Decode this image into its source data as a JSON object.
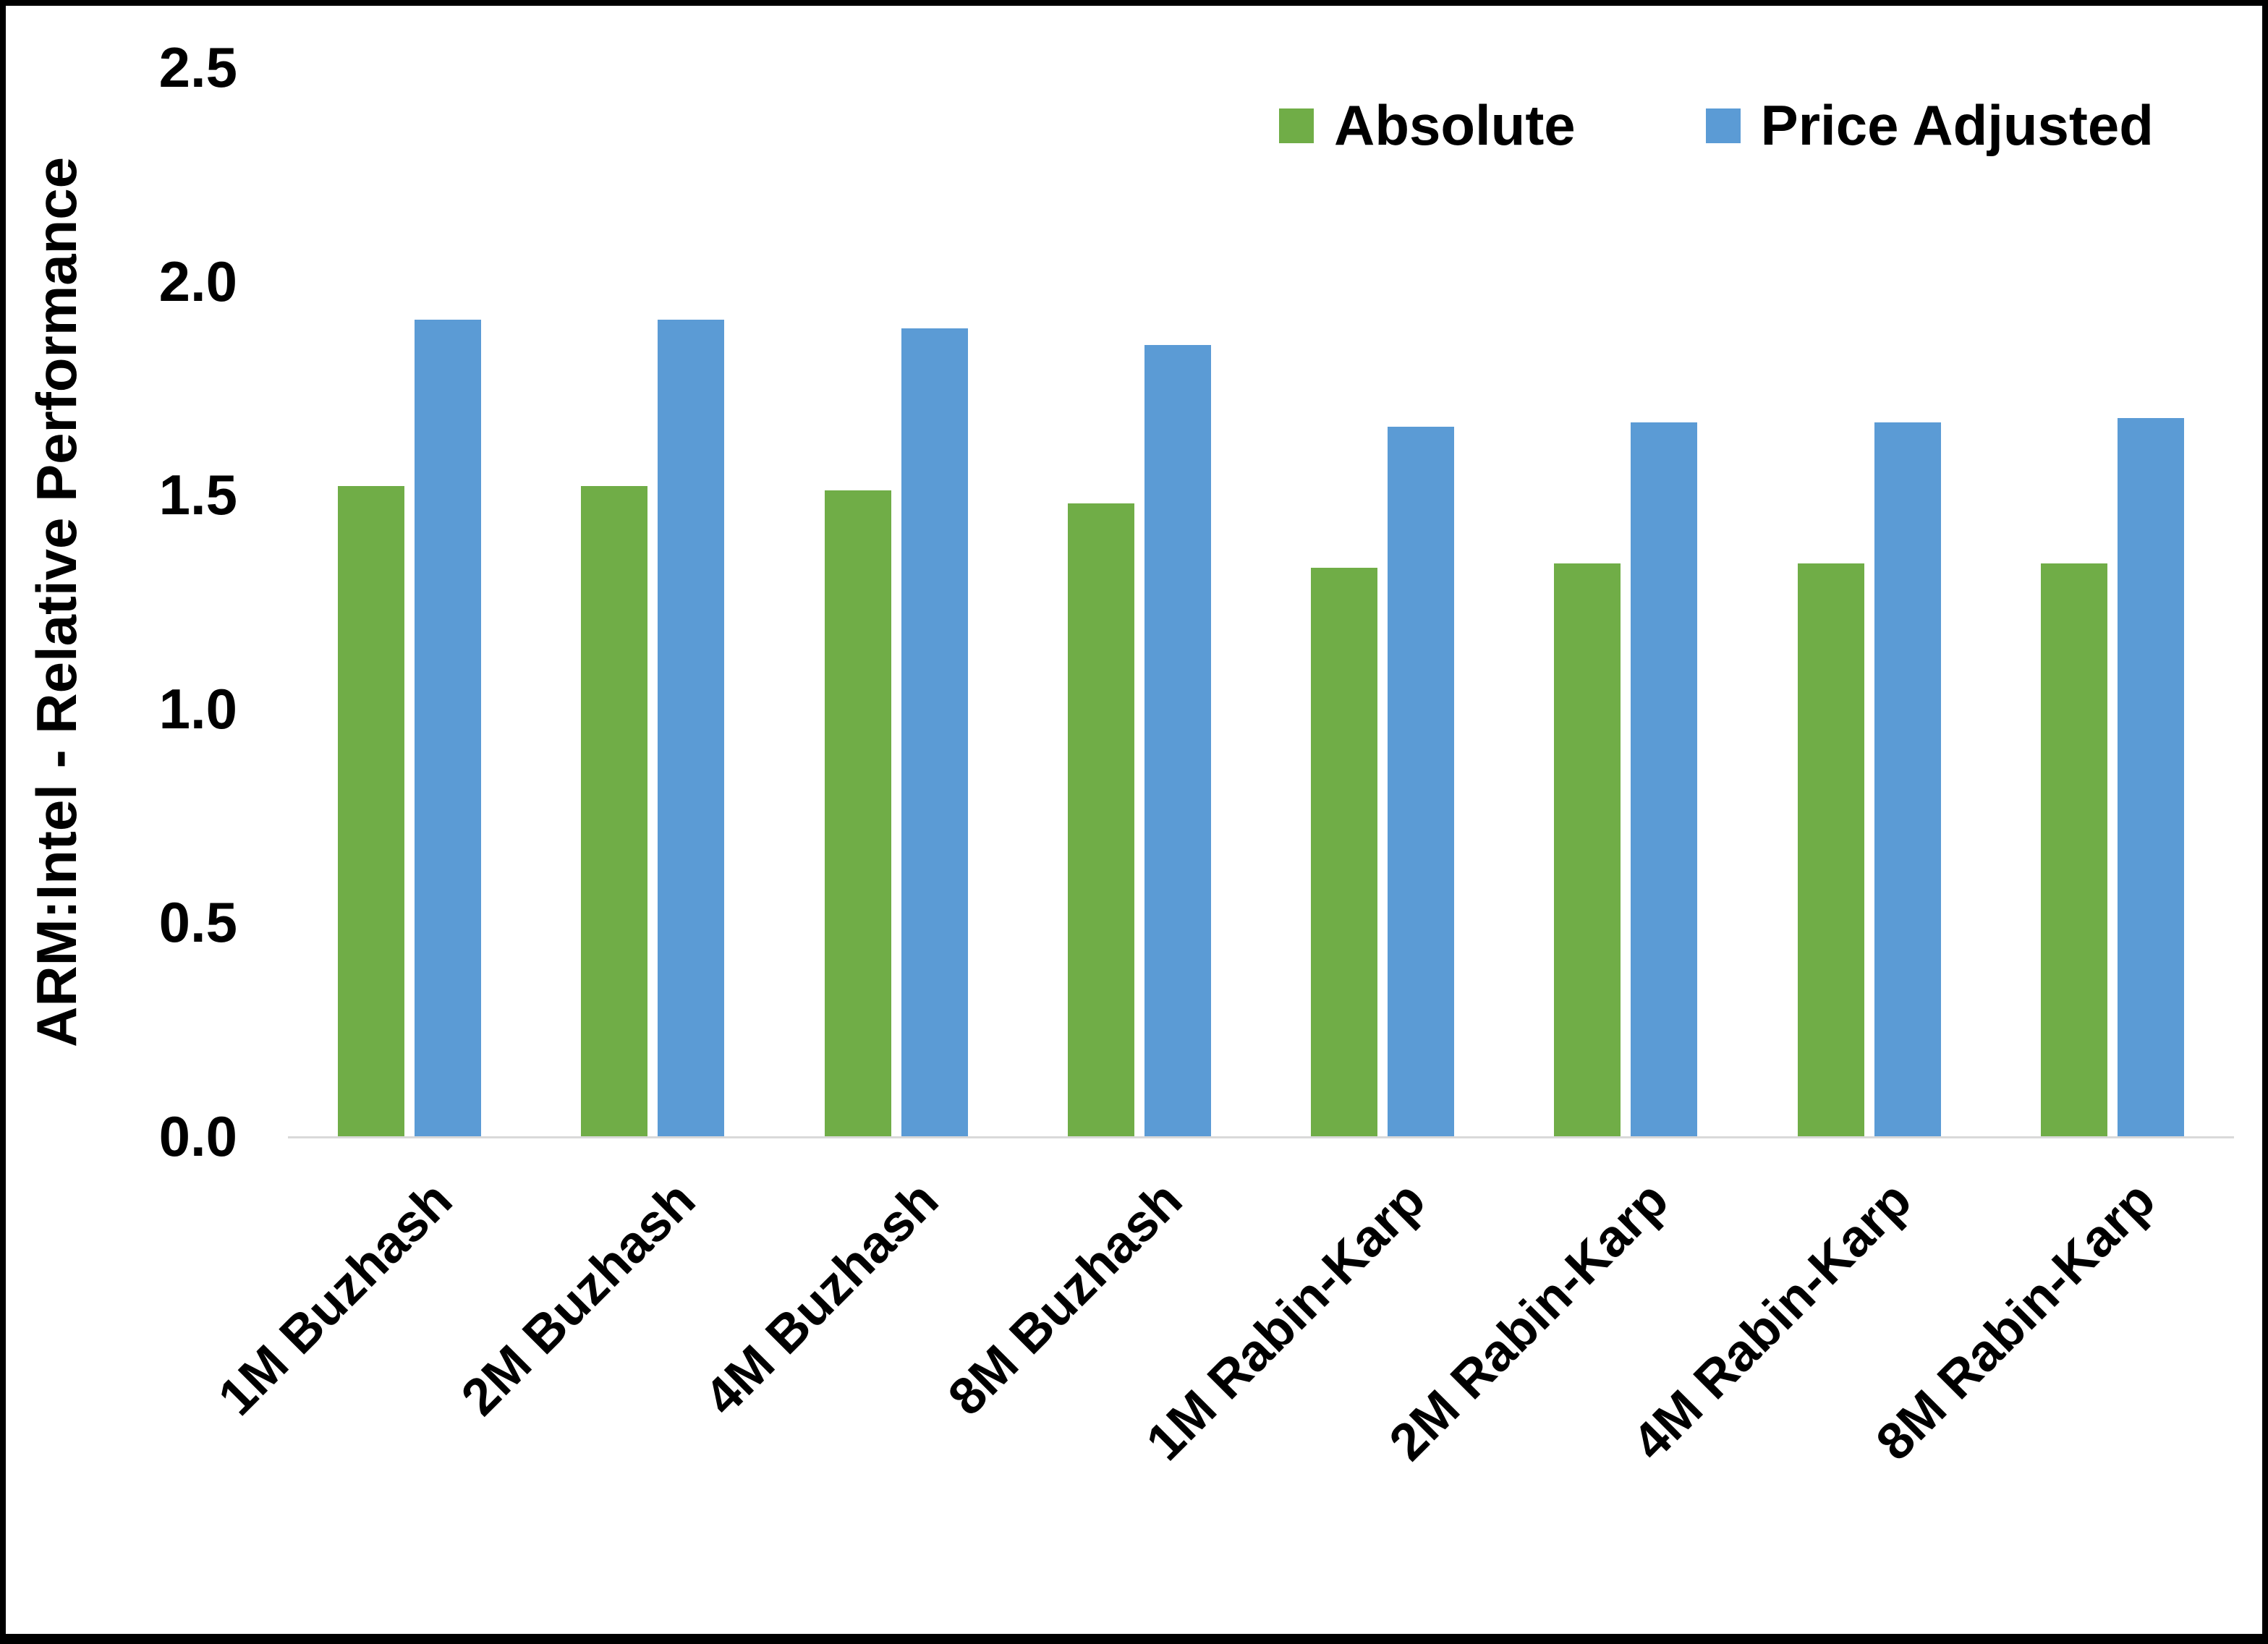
{
  "chart_data": {
    "type": "bar",
    "title": "",
    "ylabel": "ARM:Intel - Relative Performance",
    "xlabel": "",
    "ylim": [
      0,
      2.5
    ],
    "yticks": [
      0.0,
      0.5,
      1.0,
      1.5,
      2.0,
      2.5
    ],
    "grid": false,
    "legend_position": "top-right",
    "categories": [
      "1M Buzhash",
      "2M Buzhash",
      "4M Buzhash",
      "8M Buzhash",
      "1M Rabin-Karp",
      "2M Rabin-Karp",
      "4M Rabin-Karp",
      "8M Rabin-Karp"
    ],
    "series": [
      {
        "name": "Absolute",
        "color": "#70AD47",
        "values": [
          1.52,
          1.52,
          1.51,
          1.48,
          1.33,
          1.34,
          1.34,
          1.34
        ]
      },
      {
        "name": "Price Adjusted",
        "color": "#5B9BD5",
        "values": [
          1.91,
          1.91,
          1.89,
          1.85,
          1.66,
          1.67,
          1.67,
          1.68
        ]
      }
    ]
  }
}
